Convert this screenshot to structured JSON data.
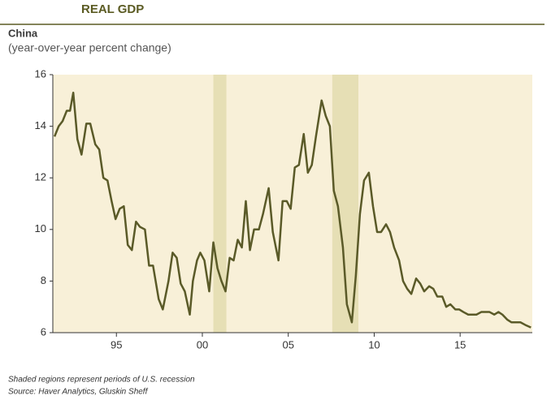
{
  "chart_data": {
    "type": "line",
    "header": "REAL GDP",
    "title": "China",
    "subtitle": "(year-over-year percent change)",
    "notes": [
      "Shaded regions represent periods of U.S. recession",
      "Source: Haver Analytics, Gluskin Sheff"
    ],
    "shaded_regions": [
      [
        2000.64,
        2001.4
      ],
      [
        2007.56,
        2009.08
      ]
    ],
    "shade_color": "#e6dfb5",
    "x": [
      1991.4,
      1991.64,
      1991.87,
      1992.11,
      1992.3,
      1992.49,
      1992.73,
      1992.97,
      1993.25,
      1993.48,
      1993.77,
      1994.0,
      1994.24,
      1994.48,
      1994.72,
      1994.95,
      1995.19,
      1995.43,
      1995.66,
      1995.9,
      1996.14,
      1996.37,
      1996.66,
      1996.9,
      1997.13,
      1997.46,
      1997.7,
      1998.03,
      1998.27,
      1998.51,
      1998.74,
      1998.98,
      1999.27,
      1999.45,
      1999.69,
      1999.88,
      2000.12,
      2000.4,
      2000.64,
      2000.88,
      2001.11,
      2001.35,
      2001.59,
      2001.82,
      2002.06,
      2002.3,
      2002.53,
      2002.77,
      2003.01,
      2003.29,
      2003.53,
      2003.86,
      2004.1,
      2004.43,
      2004.67,
      2004.91,
      2005.14,
      2005.38,
      2005.62,
      2005.9,
      2006.14,
      2006.37,
      2006.61,
      2006.94,
      2007.18,
      2007.42,
      2007.65,
      2007.89,
      2008.18,
      2008.41,
      2008.7,
      2008.93,
      2009.17,
      2009.41,
      2009.69,
      2009.93,
      2010.17,
      2010.4,
      2010.69,
      2010.92,
      2011.16,
      2011.45,
      2011.68,
      2011.92,
      2012.16,
      2012.44,
      2012.68,
      2012.91,
      2013.2,
      2013.44,
      2013.67,
      2013.96,
      2014.19,
      2014.43,
      2014.72,
      2014.95,
      2015.19,
      2015.47,
      2015.71,
      2015.95,
      2016.23,
      2016.47,
      2016.71,
      2016.99,
      2017.23,
      2017.46,
      2017.75,
      2017.99,
      2018.27,
      2018.51,
      2018.79,
      2019.12
    ],
    "series": [
      {
        "name": "China",
        "color": "#5a5a28",
        "values": [
          13.6,
          14.0,
          14.2,
          14.6,
          14.6,
          15.3,
          13.5,
          12.9,
          14.1,
          14.1,
          13.3,
          13.1,
          12.0,
          11.9,
          11.1,
          10.4,
          10.8,
          10.9,
          9.4,
          9.2,
          10.3,
          10.1,
          10.0,
          8.6,
          8.6,
          7.3,
          6.9,
          8.0,
          9.1,
          8.9,
          7.9,
          7.6,
          6.7,
          8.0,
          8.8,
          9.1,
          8.8,
          7.6,
          9.5,
          8.5,
          8.0,
          7.6,
          8.9,
          8.8,
          9.6,
          9.3,
          11.1,
          9.2,
          10.0,
          10.0,
          10.6,
          11.6,
          9.9,
          8.8,
          11.1,
          11.1,
          10.8,
          12.4,
          12.5,
          13.7,
          12.2,
          12.5,
          13.6,
          15.0,
          14.4,
          14.0,
          11.5,
          10.9,
          9.3,
          7.1,
          6.4,
          8.2,
          10.6,
          11.9,
          12.2,
          10.9,
          9.9,
          9.9,
          10.2,
          9.9,
          9.3,
          8.8,
          8.0,
          7.7,
          7.5,
          8.1,
          7.9,
          7.6,
          7.8,
          7.7,
          7.4,
          7.4,
          7.0,
          7.1,
          6.9,
          6.9,
          6.8,
          6.7,
          6.7,
          6.7,
          6.8,
          6.8,
          6.8,
          6.7,
          6.8,
          6.7,
          6.5,
          6.4,
          6.4,
          6.4,
          6.3,
          6.2
        ]
      }
    ],
    "xlim": [
      1991.3,
      2019.2
    ],
    "xticks": [
      {
        "value": 1995,
        "label": "95"
      },
      {
        "value": 2000,
        "label": "00"
      },
      {
        "value": 2005,
        "label": "05"
      },
      {
        "value": 2010,
        "label": "10"
      },
      {
        "value": 2015,
        "label": "15"
      }
    ],
    "ylim": [
      6,
      16
    ],
    "yticks": [
      6,
      8,
      10,
      12,
      14,
      16
    ],
    "grid": false
  }
}
